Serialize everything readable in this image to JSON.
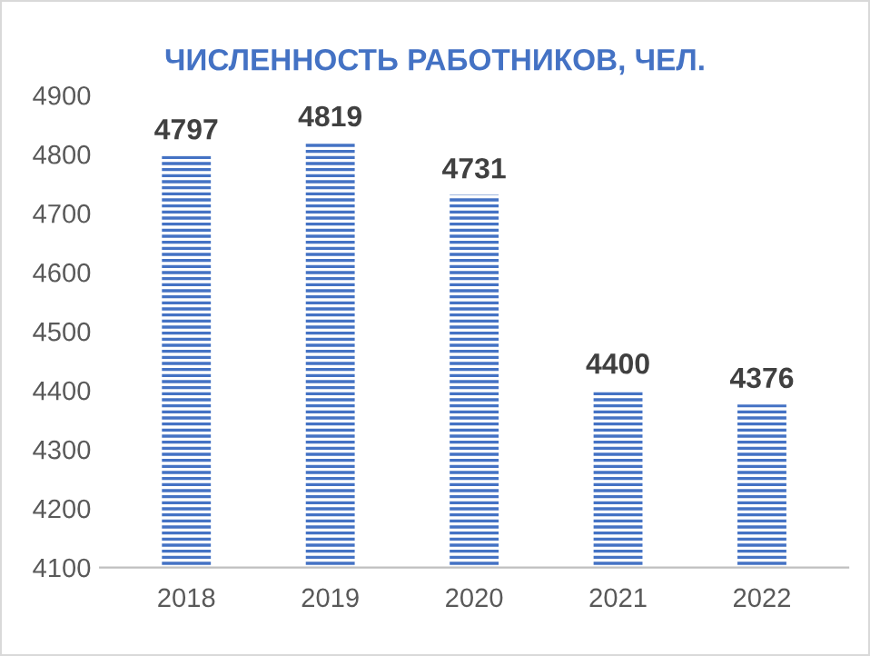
{
  "chart_data": {
    "type": "bar",
    "title": "ЧИСЛЕННОСТЬ РАБОТНИКОВ, ЧЕЛ.",
    "categories": [
      "2018",
      "2019",
      "2020",
      "2021",
      "2022"
    ],
    "values": [
      4797,
      4819,
      4731,
      4400,
      4376
    ],
    "color": "#4472c4",
    "ylim": [
      4100,
      4900
    ],
    "yticks": [
      4100,
      4200,
      4300,
      4400,
      4500,
      4600,
      4700,
      4800,
      4900
    ],
    "data_labels": true,
    "grid": false,
    "legend": false
  }
}
